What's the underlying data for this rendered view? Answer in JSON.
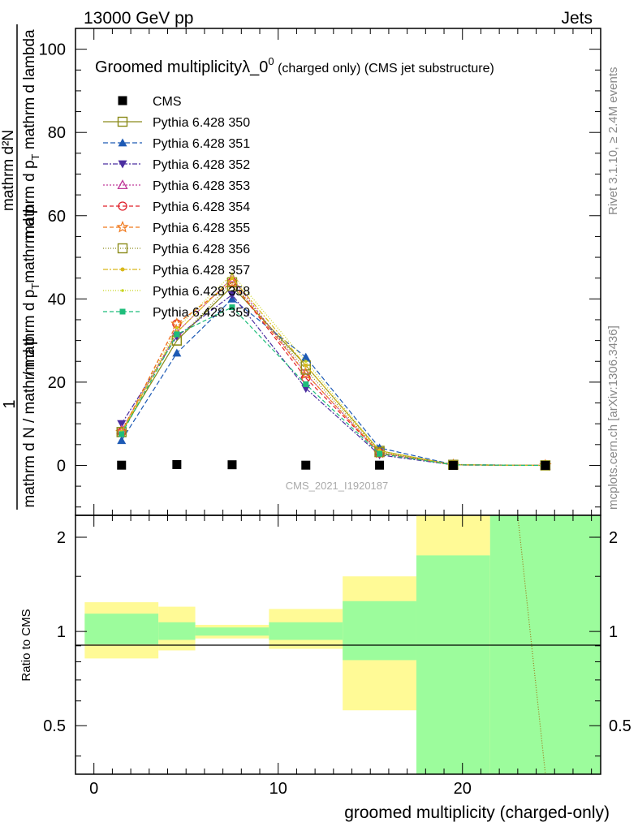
{
  "header": {
    "left": "13000 GeV pp",
    "right": "Jets"
  },
  "side_labels": {
    "rivet": "Rivet 3.1.10, ≥ 2.4M events",
    "mcplots": "mcplots.cern.ch [arXiv:1306.3436]"
  },
  "chart_data": [
    {
      "type": "line",
      "title": "Groomed multiplicityλ_0⁰ (charged only) (CMS jet substructure)",
      "title_main": "Groomed multiplicityλ_0",
      "title_sup": "0",
      "title_rest": " (charged only) (CMS jet substructure)",
      "ylabel_numerator": "mathrm d²N",
      "ylabel_denominator": "mathrm d N / mathrm d p",
      "ylabel_full": "1 / (mathrm d N / mathrm d p_T) · mathrm d²N / (mathrm d p_T mathrm d lambda)",
      "watermark": "CMS_2021_I1920187",
      "xlim": [
        -1,
        27.5
      ],
      "ylim": [
        -12,
        105
      ],
      "yticks": [
        0,
        20,
        40,
        60,
        80,
        100
      ],
      "x": [
        1.5,
        4.5,
        7.5,
        11.5,
        15.5,
        19.5,
        24.5
      ],
      "series": [
        {
          "name": "CMS",
          "color": "#000000",
          "marker": "square",
          "dash": "none",
          "values": [
            0.05,
            0.2,
            0.15,
            0.05,
            0.05,
            0.0,
            0.0
          ]
        },
        {
          "name": "Pythia 6.428 350",
          "color": "#8b8b1a",
          "marker": "square-open",
          "dash": "solid",
          "values": [
            8.0,
            30.0,
            43.0,
            24.0,
            3.5,
            0.15,
            0.0
          ]
        },
        {
          "name": "Pythia 6.428 351",
          "color": "#1d5ab5",
          "marker": "triangle-up",
          "dash": "6,3",
          "values": [
            6.0,
            27.0,
            40.0,
            26.0,
            4.2,
            0.2,
            0.0
          ]
        },
        {
          "name": "Pythia 6.428 352",
          "color": "#4b2ea0",
          "marker": "triangle-down",
          "dash": "6,2,2,2",
          "values": [
            10.0,
            31.0,
            41.0,
            18.5,
            2.5,
            0.1,
            0.0
          ]
        },
        {
          "name": "Pythia 6.428 353",
          "color": "#c03a9a",
          "marker": "triangle-open",
          "dash": "2,2",
          "values": [
            8.5,
            32.0,
            45.0,
            22.0,
            3.0,
            0.1,
            0.0
          ]
        },
        {
          "name": "Pythia 6.428 354",
          "color": "#e0202a",
          "marker": "circle-open",
          "dash": "5,3",
          "values": [
            8.0,
            34.0,
            44.0,
            21.0,
            3.0,
            0.1,
            0.0
          ]
        },
        {
          "name": "Pythia 6.428 355",
          "color": "#f07a1e",
          "marker": "star-open",
          "dash": "5,3",
          "values": [
            8.0,
            34.0,
            44.0,
            22.0,
            3.0,
            0.1,
            0.0
          ]
        },
        {
          "name": "Pythia 6.428 356",
          "color": "#8b8b1a",
          "marker": "square-open",
          "dash": "1,2",
          "values": [
            8.0,
            30.0,
            44.0,
            23.0,
            3.2,
            0.15,
            0.0
          ]
        },
        {
          "name": "Pythia 6.428 357",
          "color": "#d9b81a",
          "marker": "dot",
          "dash": "6,2,2,2",
          "values": [
            8.0,
            32.0,
            45.0,
            24.0,
            3.5,
            0.15,
            0.0
          ]
        },
        {
          "name": "Pythia 6.428 358",
          "color": "#c8d41e",
          "marker": "dot-small",
          "dash": "1,2",
          "values": [
            8.0,
            33.0,
            46.0,
            25.0,
            3.5,
            0.15,
            0.0
          ]
        },
        {
          "name": "Pythia 6.428 359",
          "color": "#1ebd7a",
          "marker": "square-small",
          "dash": "5,3",
          "values": [
            7.5,
            31.5,
            38.0,
            19.5,
            2.8,
            0.1,
            0.0
          ]
        }
      ]
    },
    {
      "type": "area",
      "ylabel": "Ratio to CMS",
      "xlabel": "groomed multiplicity (charged-only)",
      "xlim": [
        -1,
        27.5
      ],
      "ylim": [
        0.35,
        2.35
      ],
      "ytick_labels": [
        "0.5",
        "1",
        "2"
      ],
      "yticks": [
        0.5,
        1,
        2
      ],
      "xtick_labels": [
        "0",
        "10",
        "20"
      ],
      "xticks": [
        0,
        10,
        20
      ],
      "bands": [
        {
          "x0": -0.5,
          "x1": 3.5,
          "inner_lo": 0.91,
          "inner_hi": 1.14,
          "outer_lo": 0.82,
          "outer_hi": 1.24
        },
        {
          "x0": 3.5,
          "x1": 5.5,
          "inner_lo": 0.94,
          "inner_hi": 1.07,
          "outer_lo": 0.87,
          "outer_hi": 1.2
        },
        {
          "x0": 5.5,
          "x1": 9.5,
          "inner_lo": 0.97,
          "inner_hi": 1.03,
          "outer_lo": 0.95,
          "outer_hi": 1.05
        },
        {
          "x0": 9.5,
          "x1": 13.5,
          "inner_lo": 0.94,
          "inner_hi": 1.07,
          "outer_lo": 0.88,
          "outer_hi": 1.18
        },
        {
          "x0": 13.5,
          "x1": 17.5,
          "inner_lo": 0.81,
          "inner_hi": 1.25,
          "outer_lo": 0.56,
          "outer_hi": 1.5
        },
        {
          "x0": 17.5,
          "x1": 21.5,
          "inner_lo": 0.35,
          "inner_hi": 1.75,
          "outer_lo": 0.35,
          "outer_hi": 2.35
        },
        {
          "x0": 21.5,
          "x1": 27.5,
          "inner_lo": 0.35,
          "inner_hi": 2.35,
          "outer_lo": 0.35,
          "outer_hi": 2.35
        }
      ],
      "ratio_line": {
        "color": "#9b7a1a",
        "points": [
          [
            23.0,
            2.35
          ],
          [
            24.5,
            0.35
          ]
        ]
      },
      "colors": {
        "inner": "#9cfc9c",
        "outer": "#fffa96"
      }
    }
  ]
}
